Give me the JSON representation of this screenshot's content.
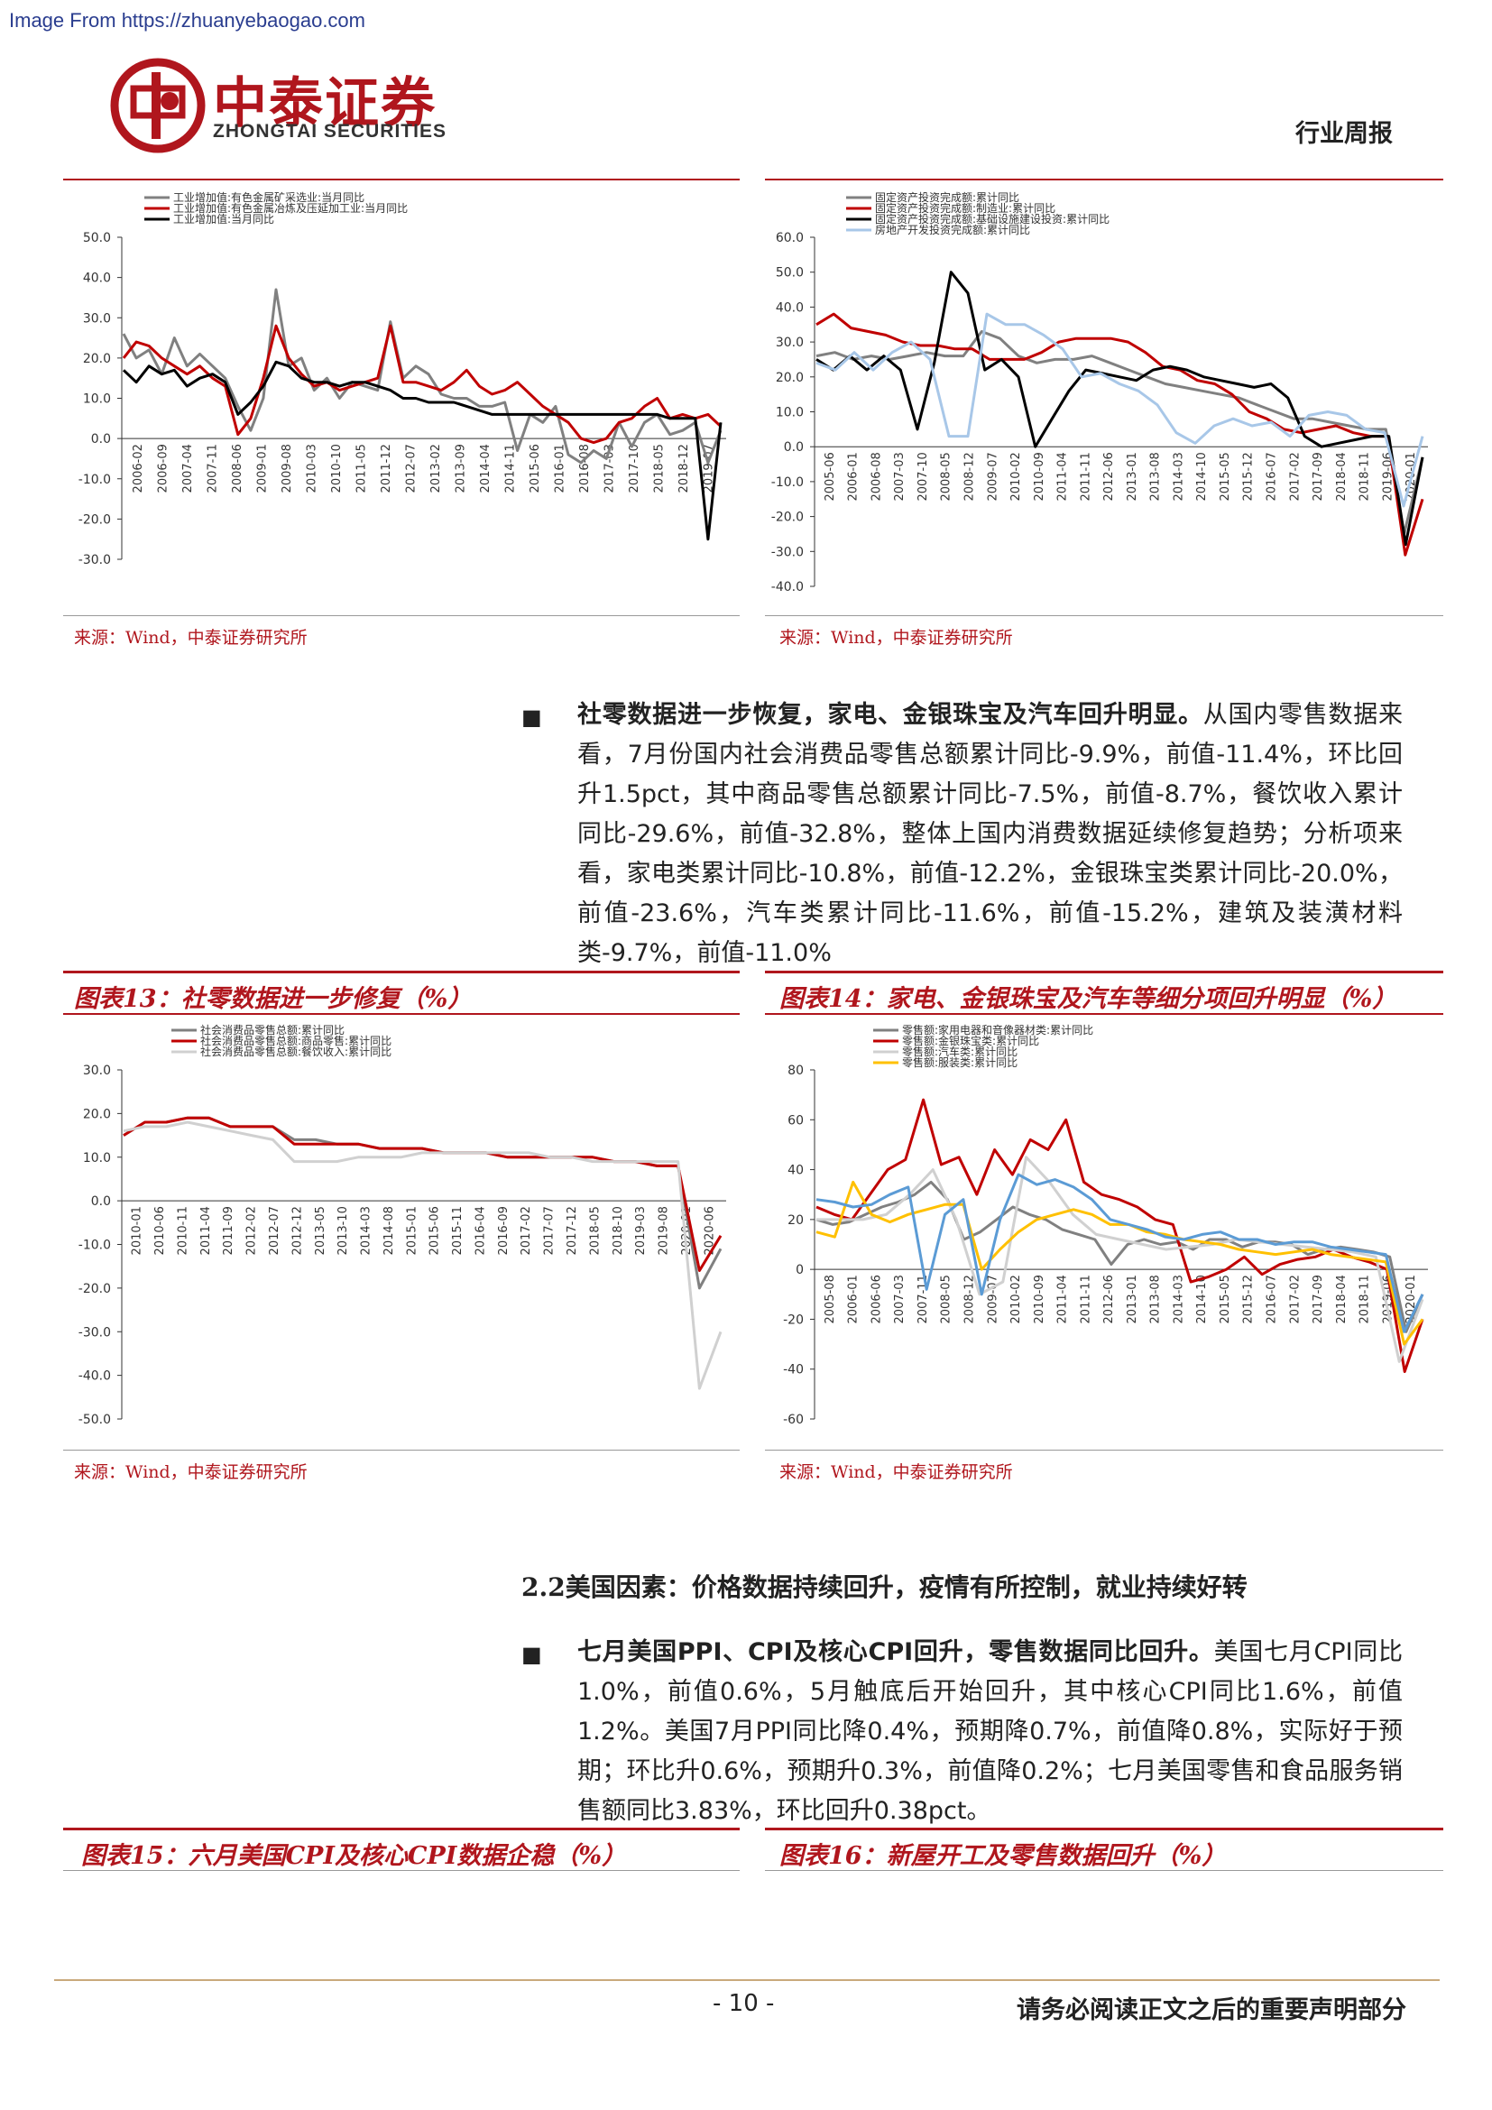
{
  "source_url": "Image From https://zhuanyebaogao.com",
  "brand": {
    "cn": "中泰证券",
    "en": "ZHONGTAI SECURITIES",
    "color": "#b0161d"
  },
  "report_type": "行业周报",
  "source_note": "来源：Wind，中泰证券研究所",
  "paragraph1": {
    "lead": "社零数据进一步恢复，家电、金银珠宝及汽车回升明显。",
    "body": "从国内零售数据来看，7月份国内社会消费品零售总额累计同比-9.9%，前值-11.4%，环比回升1.5pct，其中商品零售总额累计同比-7.5%，前值-8.7%，餐饮收入累计同比-29.6%，前值-32.8%，整体上国内消费数据延续修复趋势；分析项来看，家电类累计同比-10.8%，前值-12.2%，金银珠宝类累计同比-20.0%，前值-23.6%，汽车类累计同比-11.6%，前值-15.2%，建筑及装潢材料类-9.7%，前值-11.0%"
  },
  "fig13_title": "图表13：社零数据进一步修复（%）",
  "fig14_title": "图表14：家电、金银珠宝及汽车等细分项回升明显（%）",
  "section_2_2": "2.2美国因素：价格数据持续回升，疫情有所控制，就业持续好转",
  "paragraph2": {
    "lead": "七月美国PPI、CPI及核心CPI回升，零售数据同比回升。",
    "body": "美国七月CPI同比1.0%，前值0.6%，5月触底后开始回升，其中核心CPI同比1.6%，前值1.2%。美国7月PPI同比降0.4%，预期降0.7%，前值降0.8%，实际好于预期；环比升0.6%，预期升0.3%，前值降0.2%；七月美国零售和食品服务销售额同比3.83%，环比回升0.38pct。"
  },
  "fig15_title": "图表15：六月美国CPI及核心CPI数据企稳（%）",
  "fig16_title": "图表16：新屋开工及零售数据回升（%）",
  "footer": {
    "page": "- 10 -",
    "note": "请务必阅读正文之后的重要声明部分"
  },
  "charts": [
    {
      "type": "line",
      "ylim": [
        -30,
        50
      ],
      "yticks": [
        "50.0",
        "40.0",
        "30.0",
        "20.0",
        "10.0",
        "0.0",
        "-10.0",
        "-20.0",
        "-30.0"
      ],
      "xticks": [
        "2006-02",
        "2006-09",
        "2007-04",
        "2007-11",
        "2008-06",
        "2009-01",
        "2009-08",
        "2010-03",
        "2010-10",
        "2011-05",
        "2011-12",
        "2012-07",
        "2013-02",
        "2013-09",
        "2014-04",
        "2014-11",
        "2015-06",
        "2016-01",
        "2016-08",
        "2017-03",
        "2017-10",
        "2018-05",
        "2018-12",
        "2019-07"
      ],
      "series": [
        {
          "name": "工业增加值:有色金属矿采选业:当月同比",
          "color": "#808080",
          "values": [
            26,
            20,
            22,
            16,
            25,
            18,
            21,
            18,
            15,
            8,
            2,
            10,
            37,
            18,
            20,
            12,
            15,
            10,
            14,
            13,
            12,
            29,
            15,
            18,
            16,
            11,
            10,
            10,
            8,
            8,
            9,
            -3,
            6,
            4,
            8,
            -4,
            -6,
            -3,
            -5,
            4,
            -2,
            4,
            6,
            1,
            2,
            4,
            -6,
            2
          ]
        },
        {
          "name": "工业增加值:有色金属冶炼及压延加工业:当月同比",
          "color": "#c00000",
          "values": [
            20,
            24,
            23,
            20,
            18,
            16,
            18,
            15,
            13,
            1,
            5,
            15,
            28,
            20,
            16,
            13,
            14,
            12,
            13,
            14,
            15,
            28,
            14,
            14,
            13,
            12,
            14,
            17,
            13,
            11,
            12,
            14,
            11,
            8,
            6,
            4,
            0,
            -1,
            0,
            4,
            5,
            8,
            10,
            5,
            6,
            5,
            6,
            3
          ]
        },
        {
          "name": "工业增加值:当月同比",
          "color": "#000000",
          "values": [
            17,
            14,
            18,
            16,
            17,
            13,
            15,
            16,
            14,
            6,
            9,
            13,
            19,
            18,
            15,
            14,
            14,
            13,
            14,
            14,
            13,
            12,
            10,
            10,
            9,
            9,
            9,
            8,
            7,
            6,
            6,
            6,
            6,
            6,
            6,
            6,
            6,
            6,
            6,
            6,
            6,
            6,
            6,
            5,
            5,
            5,
            -25,
            4
          ]
        }
      ]
    },
    {
      "type": "line",
      "ylim": [
        -40,
        60
      ],
      "yticks": [
        "60.0",
        "50.0",
        "40.0",
        "30.0",
        "20.0",
        "10.0",
        "0.0",
        "-10.0",
        "-20.0",
        "-30.0",
        "-40.0"
      ],
      "xticks": [
        "2005-06",
        "2006-01",
        "2006-08",
        "2007-03",
        "2007-10",
        "2008-05",
        "2008-12",
        "2009-07",
        "2010-02",
        "2010-09",
        "2011-04",
        "2011-11",
        "2012-06",
        "2013-01",
        "2013-08",
        "2014-03",
        "2014-10",
        "2015-05",
        "2015-12",
        "2016-07",
        "2017-02",
        "2017-09",
        "2018-04",
        "2018-11",
        "2019-06",
        "2020-01"
      ],
      "series": [
        {
          "name": "固定资产投资完成额:累计同比",
          "color": "#808080",
          "values": [
            26,
            27,
            25,
            26,
            25,
            26,
            27,
            26,
            26,
            33,
            31,
            26,
            24,
            25,
            25,
            26,
            24,
            22,
            20,
            18,
            17,
            16,
            15,
            14,
            12,
            10,
            8,
            8,
            7,
            6,
            5,
            5,
            -25,
            -3
          ]
        },
        {
          "name": "固定资产投资完成额:制造业:累计同比",
          "color": "#c00000",
          "values": [
            35,
            38,
            34,
            33,
            32,
            30,
            29,
            29,
            28,
            28,
            25,
            25,
            25,
            27,
            30,
            31,
            31,
            31,
            30,
            27,
            23,
            22,
            19,
            18,
            15,
            10,
            8,
            5,
            4,
            5,
            6,
            4,
            3,
            3,
            -31,
            -15
          ]
        },
        {
          "name": "固定资产投资完成额:基础设施建设投资:累计同比",
          "color": "#000000",
          "values": [
            25,
            22,
            26,
            22,
            26,
            22,
            5,
            24,
            50,
            44,
            22,
            25,
            20,
            0,
            8,
            16,
            22,
            21,
            20,
            19,
            22,
            23,
            22,
            20,
            19,
            18,
            17,
            18,
            14,
            3,
            0,
            1,
            2,
            3,
            3,
            -28,
            -3
          ]
        },
        {
          "name": "房地产开发投资完成额:累计同比",
          "color": "#a8c7e8",
          "values": [
            24,
            22,
            27,
            22,
            27,
            30,
            25,
            3,
            3,
            38,
            35,
            35,
            32,
            28,
            20,
            21,
            18,
            16,
            12,
            4,
            1,
            6,
            8,
            6,
            7,
            3,
            9,
            10,
            9,
            5,
            4,
            -17,
            3
          ]
        }
      ]
    },
    {
      "type": "line",
      "ylim": [
        -50,
        30
      ],
      "yticks": [
        "30.0",
        "20.0",
        "10.0",
        "0.0",
        "-10.0",
        "-20.0",
        "-30.0",
        "-40.0",
        "-50.0"
      ],
      "xticks": [
        "2010-01",
        "2010-06",
        "2010-11",
        "2011-04",
        "2011-09",
        "2012-02",
        "2012-07",
        "2012-12",
        "2013-05",
        "2013-10",
        "2014-03",
        "2014-08",
        "2015-01",
        "2015-06",
        "2015-11",
        "2016-04",
        "2016-09",
        "2017-02",
        "2017-07",
        "2017-12",
        "2018-05",
        "2018-10",
        "2019-03",
        "2019-08",
        "2020-01",
        "2020-06"
      ],
      "series": [
        {
          "name": "社会消费品零售总额:累计同比",
          "color": "#808080",
          "values": [
            15,
            18,
            18,
            19,
            19,
            17,
            17,
            17,
            14,
            14,
            13,
            13,
            12,
            12,
            12,
            11,
            11,
            11,
            10,
            10,
            10,
            10,
            10,
            9,
            9,
            8,
            8,
            -20,
            -11
          ]
        },
        {
          "name": "社会消费品零售总额:商品零售:累计同比",
          "color": "#c00000",
          "values": [
            15,
            18,
            18,
            19,
            19,
            17,
            17,
            17,
            13,
            13,
            13,
            13,
            12,
            12,
            12,
            11,
            11,
            11,
            10,
            10,
            10,
            10,
            10,
            9,
            9,
            8,
            8,
            -16,
            -8
          ]
        },
        {
          "name": "社会消费品零售总额:餐饮收入:累计同比",
          "color": "#d0d0d0",
          "values": [
            16,
            17,
            17,
            18,
            17,
            16,
            15,
            14,
            9,
            9,
            9,
            10,
            10,
            10,
            11,
            11,
            11,
            11,
            11,
            11,
            10,
            10,
            9,
            9,
            9,
            9,
            9,
            -43,
            -30
          ]
        }
      ]
    },
    {
      "type": "line",
      "ylim": [
        -60,
        80
      ],
      "yticks": [
        "80",
        "60",
        "40",
        "20",
        "0",
        "-20",
        "-40",
        "-60"
      ],
      "xticks": [
        "2005-08",
        "2006-01",
        "2006-06",
        "2007-03",
        "2007-11",
        "2008-05",
        "2008-12",
        "2009-07",
        "2010-02",
        "2010-09",
        "2011-04",
        "2011-11",
        "2012-06",
        "2013-01",
        "2013-08",
        "2014-03",
        "2014-10",
        "2015-05",
        "2015-12",
        "2016-07",
        "2017-02",
        "2017-09",
        "2018-04",
        "2018-11",
        "2019-06",
        "2020-01"
      ],
      "series": [
        {
          "name": "零售额:家用电器和音像器材类:累计同比",
          "color": "#808080",
          "values": [
            20,
            18,
            19,
            22,
            25,
            27,
            30,
            35,
            28,
            12,
            15,
            20,
            25,
            22,
            20,
            16,
            14,
            12,
            2,
            10,
            12,
            10,
            11,
            8,
            12,
            12,
            9,
            11,
            11,
            10,
            6,
            8,
            9,
            8,
            7,
            5,
            -25,
            -10
          ]
        },
        {
          "name": "零售额:金银珠宝类:累计同比",
          "color": "#c00000",
          "values": [
            25,
            22,
            20,
            30,
            40,
            44,
            68,
            42,
            45,
            30,
            48,
            38,
            52,
            48,
            60,
            35,
            30,
            28,
            25,
            20,
            18,
            -5,
            -3,
            0,
            5,
            -2,
            2,
            4,
            5,
            8,
            5,
            3,
            0,
            -41,
            -20
          ]
        },
        {
          "name": "零售额:汽车类:累计同比",
          "color": "#d0d0d0",
          "values": [
            20,
            20,
            20,
            22,
            30,
            40,
            20,
            -10,
            -5,
            45,
            35,
            22,
            14,
            12,
            10,
            8,
            9,
            10,
            12,
            11,
            10,
            9,
            8,
            7,
            5,
            -37,
            -12
          ]
        },
        {
          "name": "零售额:服装类:累计同比",
          "color": "#ffc000",
          "values": [
            15,
            13,
            35,
            22,
            19,
            22,
            24,
            26,
            26,
            0,
            8,
            15,
            20,
            22,
            24,
            22,
            18,
            18,
            15,
            14,
            12,
            11,
            10,
            8,
            7,
            6,
            7,
            8,
            6,
            5,
            4,
            3,
            -30,
            -20
          ]
        },
        {
          "name": "",
          "color": "#5b9bd5",
          "values": [
            28,
            27,
            25,
            26,
            30,
            33,
            -8,
            22,
            28,
            -10,
            20,
            38,
            34,
            36,
            33,
            28,
            20,
            18,
            16,
            13,
            12,
            14,
            15,
            12,
            12,
            10,
            11,
            11,
            9,
            8,
            7,
            6,
            -25,
            -10
          ]
        }
      ]
    }
  ]
}
